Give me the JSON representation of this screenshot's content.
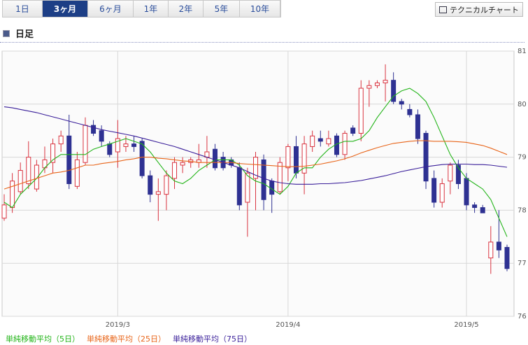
{
  "tabs": [
    {
      "label": "1日"
    },
    {
      "label": "3ヶ月",
      "active": true
    },
    {
      "label": "6ヶ月"
    },
    {
      "label": "1年"
    },
    {
      "label": "2年"
    },
    {
      "label": "5年"
    },
    {
      "label": "10年"
    }
  ],
  "button": "テクニカルチャート",
  "section_title": "日足",
  "chart_data": {
    "type": "candlestick",
    "up_color": "#d9333f",
    "down_color": "#2e3192",
    "open": [
      77.85,
      78.05,
      78.35,
      78.5,
      78.4,
      78.8,
      78.9,
      79.25,
      79.4,
      78.45,
      78.9,
      79.6,
      79.5,
      79.25,
      79.1,
      79.2,
      79.25,
      79.3,
      78.65,
      78.3,
      78.3,
      78.6,
      78.85,
      78.9,
      78.9,
      79.0,
      79.15,
      79.0,
      78.95,
      78.8,
      78.15,
      78.6,
      78.95,
      78.55,
      78.35,
      78.8,
      79.2,
      78.7,
      79.2,
      79.35,
      79.25,
      79.4,
      79.05,
      79.55,
      79.45,
      80.3,
      80.35,
      80.4,
      80.45,
      80.05,
      79.9,
      79.8,
      79.45,
      78.6,
      78.15,
      78.55,
      78.85,
      78.6,
      78.1,
      78.05,
      77.1,
      77.4,
      77.3
    ],
    "high": [
      78.3,
      78.7,
      78.9,
      79.3,
      78.95,
      79.2,
      79.35,
      79.5,
      79.8,
      79.1,
      79.75,
      79.7,
      79.6,
      79.3,
      79.7,
      79.4,
      79.4,
      79.35,
      78.75,
      78.6,
      78.75,
      79.0,
      79.0,
      79.0,
      79.25,
      79.4,
      79.25,
      79.1,
      79.0,
      78.9,
      78.8,
      79.1,
      79.05,
      78.6,
      79.0,
      79.25,
      79.4,
      79.4,
      79.5,
      79.5,
      79.5,
      79.45,
      79.5,
      79.6,
      80.45,
      80.45,
      80.45,
      80.75,
      80.6,
      80.1,
      80.0,
      79.9,
      79.5,
      78.75,
      78.6,
      78.9,
      78.95,
      78.7,
      78.15,
      78.1,
      77.7,
      78.0,
      77.35
    ],
    "low": [
      77.8,
      77.95,
      78.3,
      78.4,
      78.35,
      78.7,
      78.7,
      79.1,
      78.4,
      78.4,
      78.85,
      79.4,
      79.2,
      79.0,
      78.8,
      79.1,
      79.1,
      78.6,
      78.15,
      77.8,
      78.0,
      78.4,
      78.7,
      78.8,
      78.8,
      78.8,
      78.75,
      78.75,
      78.8,
      78.0,
      77.5,
      78.0,
      78.0,
      77.95,
      78.3,
      78.55,
      78.6,
      78.3,
      79.1,
      79.2,
      79.2,
      79.0,
      78.95,
      79.4,
      79.3,
      79.95,
      80.3,
      80.05,
      80.0,
      79.9,
      79.75,
      79.25,
      78.4,
      78.05,
      78.05,
      78.3,
      78.4,
      78.0,
      77.95,
      77.95,
      76.8,
      77.1,
      76.85
    ],
    "close": [
      78.1,
      78.55,
      78.75,
      79.0,
      78.85,
      78.95,
      79.25,
      79.4,
      78.5,
      78.95,
      79.6,
      79.45,
      79.3,
      79.05,
      79.35,
      79.25,
      79.2,
      78.65,
      78.3,
      78.35,
      78.65,
      78.9,
      78.9,
      78.95,
      78.95,
      79.1,
      78.8,
      78.8,
      78.85,
      78.1,
      78.7,
      79.0,
      78.2,
      78.3,
      78.9,
      79.2,
      78.7,
      79.25,
      79.4,
      79.3,
      79.35,
      79.05,
      79.45,
      79.45,
      80.3,
      80.35,
      80.4,
      80.45,
      80.05,
      80.0,
      79.8,
      79.35,
      78.55,
      78.15,
      78.5,
      78.85,
      78.5,
      78.1,
      78.05,
      77.95,
      77.4,
      77.25,
      76.9
    ],
    "series": [
      {
        "name": "単純移動平均（5日）",
        "color": "#22b418",
        "values": [
          78.15,
          78.05,
          78.3,
          78.45,
          78.6,
          78.8,
          78.95,
          79.05,
          79.05,
          79.05,
          79.05,
          79.15,
          79.2,
          79.25,
          79.3,
          79.35,
          79.3,
          79.25,
          79.1,
          78.9,
          78.7,
          78.55,
          78.5,
          78.6,
          78.75,
          78.85,
          78.95,
          78.95,
          78.95,
          78.85,
          78.65,
          78.55,
          78.5,
          78.4,
          78.3,
          78.45,
          78.7,
          78.8,
          78.8,
          79.0,
          79.15,
          79.25,
          79.3,
          79.3,
          79.35,
          79.5,
          79.75,
          79.95,
          80.15,
          80.25,
          80.3,
          80.2,
          80.05,
          79.75,
          79.4,
          79.05,
          78.8,
          78.6,
          78.5,
          78.4,
          78.2,
          77.85,
          77.5
        ]
      },
      {
        "name": "単純移動平均（25日）",
        "color": "#e8651a",
        "values": [
          78.4,
          78.45,
          78.5,
          78.55,
          78.6,
          78.65,
          78.7,
          78.72,
          78.75,
          78.8,
          78.85,
          78.85,
          78.88,
          78.9,
          78.92,
          78.95,
          78.97,
          79.0,
          79.0,
          78.98,
          78.97,
          78.95,
          78.93,
          78.92,
          78.9,
          78.9,
          78.9,
          78.9,
          78.9,
          78.88,
          78.87,
          78.86,
          78.85,
          78.84,
          78.83,
          78.82,
          78.82,
          78.83,
          78.85,
          78.87,
          78.9,
          78.93,
          78.97,
          79.02,
          79.08,
          79.13,
          79.18,
          79.22,
          79.26,
          79.28,
          79.3,
          79.31,
          79.31,
          79.3,
          79.3,
          79.3,
          79.29,
          79.28,
          79.25,
          79.22,
          79.17,
          79.11,
          79.05
        ]
      },
      {
        "name": "単純移動平均（75日）",
        "color": "#3a1f9a",
        "values": [
          79.95,
          79.93,
          79.9,
          79.87,
          79.84,
          79.8,
          79.76,
          79.72,
          79.68,
          79.64,
          79.6,
          79.56,
          79.52,
          79.49,
          79.46,
          79.43,
          79.4,
          79.36,
          79.32,
          79.28,
          79.24,
          79.2,
          79.15,
          79.1,
          79.05,
          79.0,
          78.95,
          78.9,
          78.85,
          78.8,
          78.73,
          78.66,
          78.6,
          78.55,
          78.52,
          78.5,
          78.49,
          78.49,
          78.49,
          78.5,
          78.5,
          78.51,
          78.52,
          78.54,
          78.56,
          78.59,
          78.62,
          78.65,
          78.69,
          78.73,
          78.76,
          78.79,
          78.82,
          78.84,
          78.86,
          78.87,
          78.87,
          78.87,
          78.86,
          78.86,
          78.85,
          78.83,
          78.81
        ]
      }
    ],
    "ylim": [
      76,
      81
    ],
    "yticks": [
      76,
      77,
      78,
      79,
      80,
      81
    ],
    "xlim": [
      0,
      62
    ],
    "xticks": [
      {
        "value": 14,
        "label": "2019/3"
      },
      {
        "value": 35,
        "label": "2019/4"
      },
      {
        "value": 57,
        "label": "2019/5"
      }
    ],
    "grid": true,
    "legend": "bottom"
  }
}
